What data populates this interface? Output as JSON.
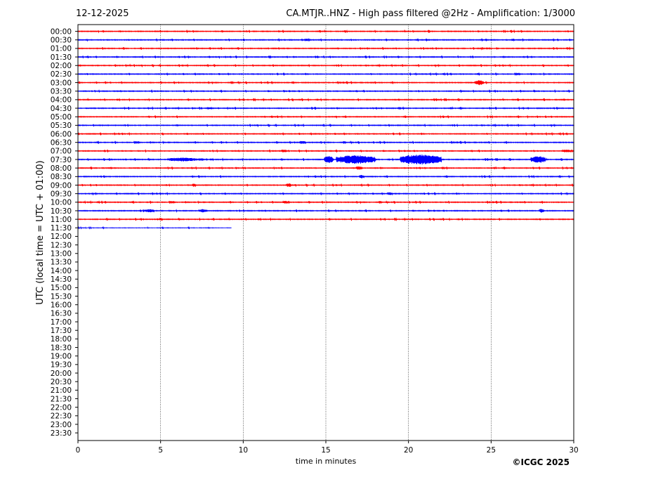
{
  "header": {
    "date": "12-12-2025",
    "title": "CA.MTJR..HNZ - High pass filtered @2Hz - Amplification: 1/3000"
  },
  "footer": {
    "credit": "©ICGC 2025"
  },
  "chart_data": {
    "type": "line",
    "xlabel": "time in minutes",
    "ylabel": "UTC (local time = UTC + 01:00)",
    "xlim": [
      0,
      30
    ],
    "xticks": [
      0,
      5,
      10,
      15,
      20,
      25,
      30
    ],
    "grid": "vertical dotted at x ticks",
    "row_labels": [
      "00:00",
      "00:30",
      "01:00",
      "01:30",
      "02:00",
      "02:30",
      "03:00",
      "03:30",
      "04:00",
      "04:30",
      "05:00",
      "05:30",
      "06:00",
      "06:30",
      "07:00",
      "07:30",
      "08:00",
      "08:30",
      "09:00",
      "09:30",
      "10:00",
      "10:30",
      "11:00",
      "11:30",
      "12:00",
      "12:30",
      "13:00",
      "13:30",
      "14:00",
      "14:30",
      "15:00",
      "15:30",
      "16:00",
      "16:30",
      "17:00",
      "17:30",
      "18:00",
      "18:30",
      "19:00",
      "19:30",
      "20:00",
      "20:30",
      "21:00",
      "21:30",
      "22:00",
      "22:30",
      "23:00",
      "23:30"
    ],
    "colors": {
      "even_rows": "#ff0000",
      "odd_rows": "#0000ff"
    },
    "recorded_rows": 24,
    "last_row_end_minute": 9.3,
    "events": [
      {
        "row": "00:30",
        "start": 13.7,
        "end": 14.0,
        "amp": 0.25
      },
      {
        "row": "03:00",
        "start": 24.0,
        "end": 24.5,
        "amp": 0.55
      },
      {
        "row": "03:00",
        "start": 12.9,
        "end": 13.1,
        "amp": 0.15
      },
      {
        "row": "04:30",
        "start": 7.8,
        "end": 8.1,
        "amp": 0.2
      },
      {
        "row": "06:30",
        "start": 13.4,
        "end": 13.8,
        "amp": 0.3
      },
      {
        "row": "07:00",
        "start": 29.3,
        "end": 29.8,
        "amp": 0.3
      },
      {
        "row": "07:00",
        "start": 12.3,
        "end": 12.6,
        "amp": 0.3
      },
      {
        "row": "07:30",
        "start": 5.4,
        "end": 7.2,
        "amp": 0.4
      },
      {
        "row": "07:30",
        "start": 7.3,
        "end": 7.6,
        "amp": 0.3
      },
      {
        "row": "07:30",
        "start": 14.9,
        "end": 15.4,
        "amp": 0.85
      },
      {
        "row": "07:30",
        "start": 15.6,
        "end": 18.0,
        "amp": 0.95
      },
      {
        "row": "07:30",
        "start": 19.5,
        "end": 22.0,
        "amp": 1.1
      },
      {
        "row": "07:30",
        "start": 27.4,
        "end": 28.3,
        "amp": 0.75
      },
      {
        "row": "08:00",
        "start": 16.8,
        "end": 17.2,
        "amp": 0.35
      },
      {
        "row": "08:30",
        "start": 17.0,
        "end": 17.3,
        "amp": 0.35
      },
      {
        "row": "09:00",
        "start": 12.6,
        "end": 12.9,
        "amp": 0.4
      },
      {
        "row": "09:00",
        "start": 6.9,
        "end": 7.1,
        "amp": 0.35
      },
      {
        "row": "09:30",
        "start": 18.7,
        "end": 19.0,
        "amp": 0.3
      },
      {
        "row": "10:00",
        "start": 12.4,
        "end": 12.7,
        "amp": 0.3
      },
      {
        "row": "10:30",
        "start": 4.0,
        "end": 4.6,
        "amp": 0.35
      },
      {
        "row": "10:30",
        "start": 7.3,
        "end": 7.8,
        "amp": 0.35
      },
      {
        "row": "10:30",
        "start": 27.9,
        "end": 28.2,
        "amp": 0.4
      },
      {
        "row": "11:00",
        "start": 4.9,
        "end": 5.1,
        "amp": 0.3
      }
    ]
  }
}
